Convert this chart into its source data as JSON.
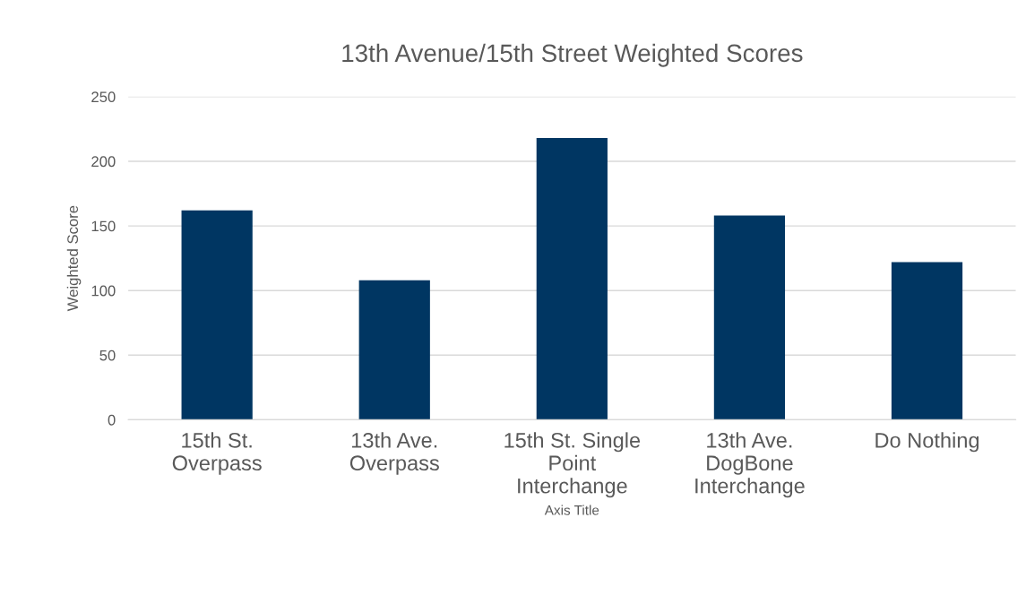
{
  "chart_data": {
    "type": "bar",
    "title": "13th Avenue/15th Street Weighted Scores",
    "xlabel": "Axis Title",
    "ylabel": "Weighted Score",
    "categories": [
      "15th St.\nOverpass",
      "13th Ave.\nOverpass",
      "15th St. Single\nPoint\nInterchange",
      "13th Ave.\nDogBone\nInterchange",
      "Do Nothing"
    ],
    "values": [
      162,
      108,
      218,
      158,
      122
    ],
    "color": "#003662",
    "ylim": [
      0,
      250
    ],
    "yticks": [
      0,
      50,
      100,
      150,
      200,
      250
    ],
    "grid": "y"
  }
}
